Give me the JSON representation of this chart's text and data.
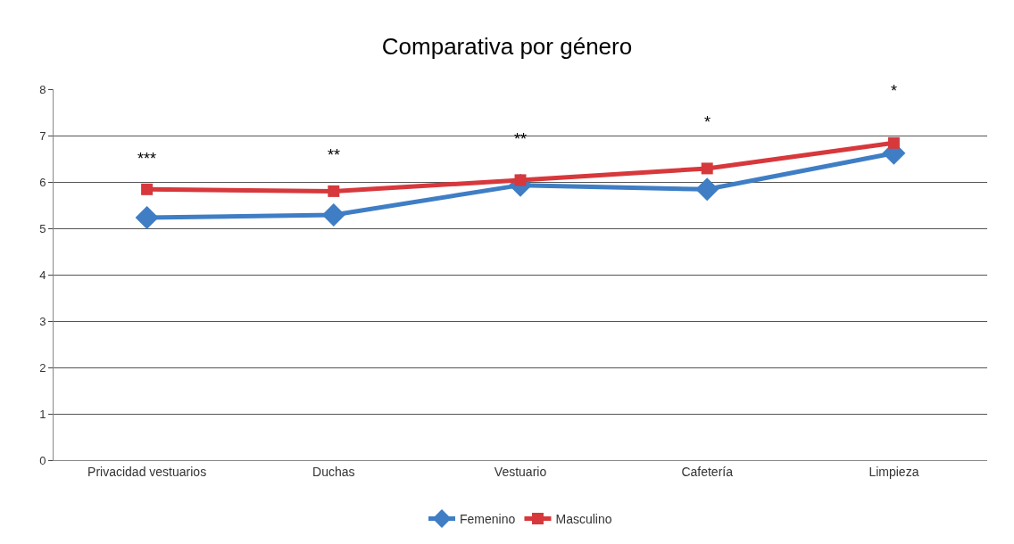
{
  "chart_data": {
    "type": "line",
    "title": "Comparativa por género",
    "categories": [
      "Privacidad vestuarios",
      "Duchas",
      "Vestuario",
      "Cafetería",
      "Limpieza"
    ],
    "series": [
      {
        "name": "Femenino",
        "color": "#3f7dc4",
        "marker": "diamond",
        "values": [
          5.23,
          5.29,
          5.93,
          5.84,
          6.62
        ]
      },
      {
        "name": "Masculino",
        "color": "#d6383c",
        "marker": "square",
        "values": [
          5.84,
          5.8,
          6.04,
          6.29,
          6.84
        ]
      }
    ],
    "annotations": [
      "***",
      "**",
      "**",
      "*",
      "*"
    ],
    "ylim": [
      0,
      8
    ],
    "yticks": [
      0,
      1,
      2,
      3,
      4,
      5,
      6,
      7,
      8
    ],
    "grid": "y",
    "legend": "bottom"
  }
}
